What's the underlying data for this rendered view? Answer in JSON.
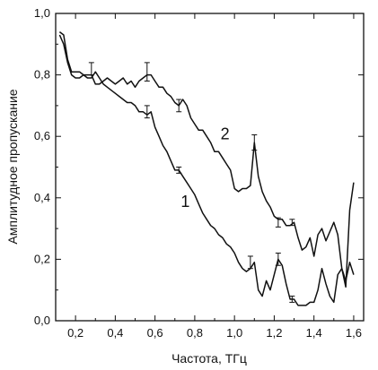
{
  "chart_data": {
    "type": "line",
    "xlabel": "Частота, ТГц",
    "ylabel": "Амплитудное пропускание",
    "xlim": [
      0.1,
      1.65
    ],
    "ylim": [
      0,
      1.0
    ],
    "xticks": [
      0.2,
      0.4,
      0.6,
      0.8,
      1.0,
      1.2,
      1.4,
      1.6
    ],
    "yticks": [
      0.0,
      0.2,
      0.4,
      0.6,
      0.8,
      1.0
    ],
    "xtick_labels": [
      "0,2",
      "0,4",
      "0,6",
      "0,8",
      "1,0",
      "1,2",
      "1,4",
      "1,6"
    ],
    "ytick_labels": [
      "0,0",
      "0,2",
      "0,4",
      "0,6",
      "0,8",
      "1,0"
    ],
    "grid": false,
    "series": [
      {
        "name": "1",
        "label_at": [
          0.73,
          0.37
        ],
        "x": [
          0.12,
          0.14,
          0.16,
          0.18,
          0.2,
          0.22,
          0.24,
          0.26,
          0.28,
          0.3,
          0.32,
          0.34,
          0.36,
          0.38,
          0.4,
          0.42,
          0.44,
          0.46,
          0.48,
          0.5,
          0.52,
          0.54,
          0.56,
          0.58,
          0.6,
          0.62,
          0.64,
          0.66,
          0.68,
          0.7,
          0.72,
          0.74,
          0.76,
          0.78,
          0.8,
          0.82,
          0.84,
          0.86,
          0.88,
          0.9,
          0.92,
          0.94,
          0.96,
          0.98,
          1.0,
          1.02,
          1.04,
          1.06,
          1.08,
          1.1,
          1.12,
          1.14,
          1.16,
          1.18,
          1.2,
          1.22,
          1.24,
          1.26,
          1.28,
          1.3,
          1.32,
          1.34,
          1.36,
          1.38,
          1.4,
          1.42,
          1.44,
          1.46,
          1.48,
          1.5,
          1.52,
          1.54,
          1.56,
          1.58,
          1.6
        ],
        "y": [
          0.94,
          0.93,
          0.85,
          0.81,
          0.81,
          0.81,
          0.8,
          0.79,
          0.79,
          0.81,
          0.79,
          0.77,
          0.76,
          0.75,
          0.74,
          0.73,
          0.72,
          0.71,
          0.71,
          0.7,
          0.68,
          0.68,
          0.67,
          0.68,
          0.63,
          0.6,
          0.57,
          0.55,
          0.52,
          0.49,
          0.49,
          0.47,
          0.45,
          0.43,
          0.41,
          0.38,
          0.35,
          0.33,
          0.31,
          0.3,
          0.28,
          0.27,
          0.25,
          0.24,
          0.22,
          0.19,
          0.17,
          0.16,
          0.17,
          0.19,
          0.1,
          0.08,
          0.13,
          0.1,
          0.15,
          0.2,
          0.18,
          0.12,
          0.07,
          0.07,
          0.05,
          0.05,
          0.05,
          0.06,
          0.06,
          0.1,
          0.17,
          0.12,
          0.08,
          0.06,
          0.15,
          0.17,
          0.13,
          0.19,
          0.15
        ],
        "error_bars": [
          {
            "x": 0.56,
            "y": 0.68,
            "err": 0.02
          },
          {
            "x": 0.72,
            "y": 0.49,
            "err": 0.01
          },
          {
            "x": 1.08,
            "y": 0.19,
            "err": 0.02
          },
          {
            "x": 1.22,
            "y": 0.2,
            "err": 0.02
          },
          {
            "x": 1.29,
            "y": 0.07,
            "err": 0.01
          }
        ]
      },
      {
        "name": "2",
        "label_at": [
          0.93,
          0.59
        ],
        "x": [
          0.12,
          0.14,
          0.16,
          0.18,
          0.2,
          0.22,
          0.24,
          0.26,
          0.28,
          0.3,
          0.32,
          0.34,
          0.36,
          0.38,
          0.4,
          0.42,
          0.44,
          0.46,
          0.48,
          0.5,
          0.52,
          0.54,
          0.56,
          0.58,
          0.6,
          0.62,
          0.64,
          0.66,
          0.68,
          0.7,
          0.72,
          0.74,
          0.76,
          0.78,
          0.8,
          0.82,
          0.84,
          0.86,
          0.88,
          0.9,
          0.92,
          0.94,
          0.96,
          0.98,
          1.0,
          1.02,
          1.04,
          1.06,
          1.08,
          1.1,
          1.12,
          1.14,
          1.16,
          1.18,
          1.2,
          1.22,
          1.24,
          1.26,
          1.28,
          1.3,
          1.32,
          1.34,
          1.36,
          1.38,
          1.4,
          1.42,
          1.44,
          1.46,
          1.48,
          1.5,
          1.52,
          1.54,
          1.56,
          1.58,
          1.6
        ],
        "y": [
          0.93,
          0.9,
          0.84,
          0.8,
          0.79,
          0.79,
          0.8,
          0.8,
          0.8,
          0.77,
          0.77,
          0.78,
          0.79,
          0.78,
          0.77,
          0.78,
          0.79,
          0.77,
          0.78,
          0.76,
          0.78,
          0.79,
          0.8,
          0.8,
          0.78,
          0.76,
          0.76,
          0.74,
          0.73,
          0.71,
          0.7,
          0.72,
          0.7,
          0.66,
          0.64,
          0.62,
          0.62,
          0.6,
          0.58,
          0.55,
          0.55,
          0.53,
          0.51,
          0.49,
          0.43,
          0.42,
          0.43,
          0.43,
          0.44,
          0.58,
          0.47,
          0.42,
          0.39,
          0.37,
          0.34,
          0.33,
          0.33,
          0.31,
          0.31,
          0.32,
          0.27,
          0.23,
          0.24,
          0.27,
          0.21,
          0.28,
          0.3,
          0.26,
          0.29,
          0.32,
          0.28,
          0.17,
          0.11,
          0.36,
          0.45
        ],
        "error_bars": [
          {
            "x": 0.28,
            "y": 0.82,
            "err": 0.02
          },
          {
            "x": 0.56,
            "y": 0.81,
            "err": 0.03
          },
          {
            "x": 0.72,
            "y": 0.7,
            "err": 0.02
          },
          {
            "x": 1.1,
            "y": 0.58,
            "err": 0.025
          },
          {
            "x": 1.22,
            "y": 0.32,
            "err": 0.015
          },
          {
            "x": 1.29,
            "y": 0.32,
            "err": 0.01
          }
        ]
      }
    ]
  }
}
